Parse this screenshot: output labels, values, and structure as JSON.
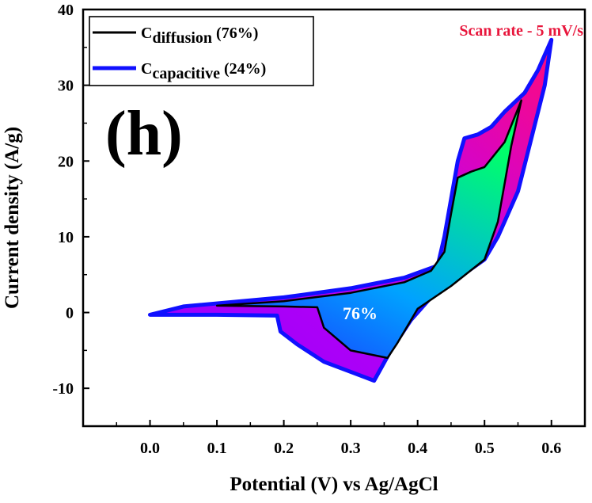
{
  "chart_data": {
    "type": "line",
    "panel_label": "(h)",
    "annotation": "Scan rate - 5 mV/s",
    "inner_label": "76%",
    "xlabel": "Potential (V) vs Ag/AgCl",
    "ylabel": "Current density (A/g)",
    "xlim": [
      -0.1,
      0.65
    ],
    "ylim": [
      -15,
      40
    ],
    "xticks": [
      0.0,
      0.1,
      0.2,
      0.3,
      0.4,
      0.5,
      0.6
    ],
    "xtick_labels": [
      "0.0",
      "0.1",
      "0.2",
      "0.3",
      "0.4",
      "0.5",
      "0.6"
    ],
    "yticks": [
      -10,
      0,
      10,
      20,
      30,
      40
    ],
    "ytick_labels": [
      "-10",
      "0",
      "10",
      "20",
      "30",
      "40"
    ],
    "legend": {
      "position": "top-left",
      "entries": [
        {
          "prefix": "C",
          "subscript": "diffusion",
          "suffix": " (76%)"
        },
        {
          "prefix": "C",
          "subscript": "capacitive",
          "suffix": " (24%)"
        }
      ]
    },
    "series": [
      {
        "name": "Cdiffusion (76%)",
        "color": "#000000",
        "fill_gradient": [
          "#1e3cff",
          "#00ff7a"
        ],
        "points": [
          [
            0.1,
            0.9
          ],
          [
            0.2,
            1.5
          ],
          [
            0.3,
            2.6
          ],
          [
            0.38,
            4.0
          ],
          [
            0.42,
            5.5
          ],
          [
            0.44,
            8.0
          ],
          [
            0.45,
            13.0
          ],
          [
            0.46,
            17.8
          ],
          [
            0.48,
            18.6
          ],
          [
            0.5,
            19.2
          ],
          [
            0.53,
            22.5
          ],
          [
            0.555,
            28.0
          ],
          [
            0.54,
            22.0
          ],
          [
            0.52,
            12.0
          ],
          [
            0.5,
            7.0
          ],
          [
            0.45,
            3.5
          ],
          [
            0.4,
            0.5
          ],
          [
            0.37,
            -4.0
          ],
          [
            0.355,
            -6.0
          ],
          [
            0.3,
            -5.0
          ],
          [
            0.26,
            -2.0
          ],
          [
            0.25,
            0.7
          ],
          [
            0.2,
            0.8
          ],
          [
            0.1,
            0.9
          ]
        ]
      },
      {
        "name": "Ccapacitive (24%)",
        "color": "#1010ff",
        "fill_gradient": [
          "#a000ff",
          "#ff0088"
        ],
        "points": [
          [
            0.0,
            -0.3
          ],
          [
            0.05,
            0.8
          ],
          [
            0.2,
            2.0
          ],
          [
            0.3,
            3.2
          ],
          [
            0.38,
            4.6
          ],
          [
            0.43,
            6.2
          ],
          [
            0.44,
            10.0
          ],
          [
            0.46,
            20.0
          ],
          [
            0.47,
            23.0
          ],
          [
            0.49,
            23.5
          ],
          [
            0.51,
            24.5
          ],
          [
            0.53,
            26.5
          ],
          [
            0.56,
            29.0
          ],
          [
            0.58,
            32.0
          ],
          [
            0.6,
            36.0
          ],
          [
            0.59,
            30.0
          ],
          [
            0.57,
            23.0
          ],
          [
            0.55,
            16.0
          ],
          [
            0.52,
            10.0
          ],
          [
            0.5,
            7.0
          ],
          [
            0.46,
            4.5
          ],
          [
            0.42,
            2.0
          ],
          [
            0.39,
            -1.0
          ],
          [
            0.36,
            -5.0
          ],
          [
            0.335,
            -9.0
          ],
          [
            0.32,
            -8.5
          ],
          [
            0.26,
            -6.5
          ],
          [
            0.22,
            -4.2
          ],
          [
            0.195,
            -2.5
          ],
          [
            0.19,
            -0.4
          ],
          [
            0.1,
            -0.3
          ],
          [
            0.0,
            -0.3
          ]
        ]
      }
    ]
  }
}
